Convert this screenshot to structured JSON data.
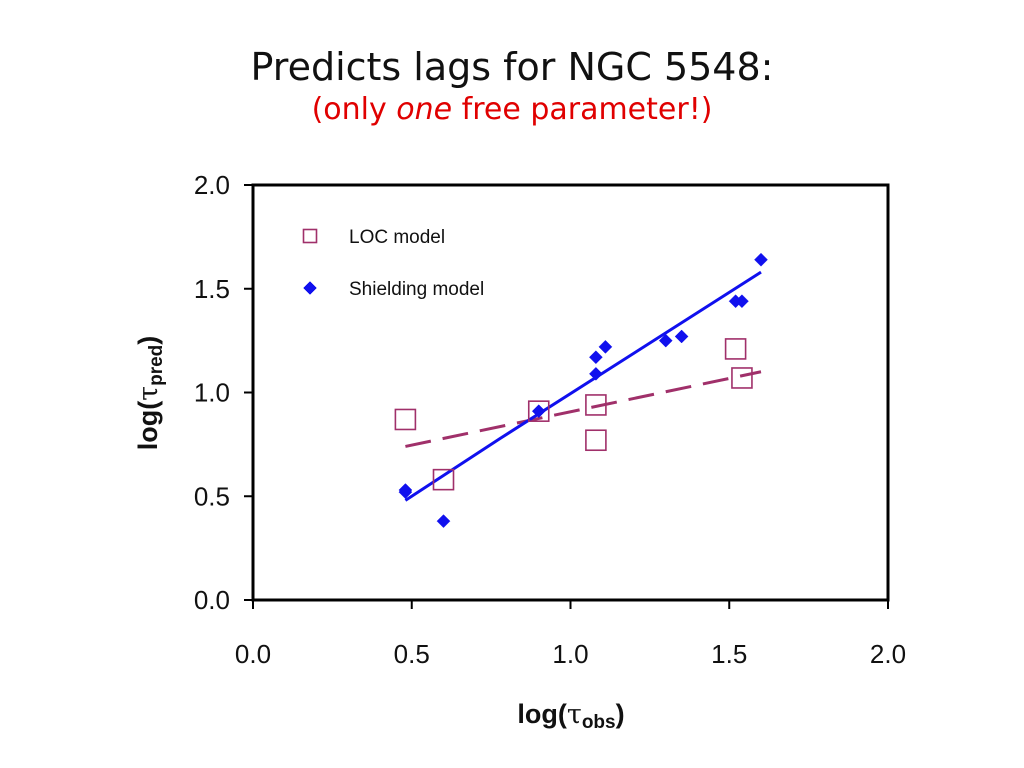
{
  "title": {
    "line1": "Predicts lags for NGC 5548:",
    "line2_pre": "(only ",
    "line2_em": "one",
    "line2_post": " free parameter!)"
  },
  "colors": {
    "loc": "#a0306a",
    "shielding": "#1010ee",
    "axis": "#000000"
  },
  "chart_data": {
    "type": "scatter",
    "xlim": [
      0.0,
      2.0
    ],
    "ylim": [
      0.0,
      2.0
    ],
    "xticks": [
      "0.0",
      "0.5",
      "1.0",
      "1.5",
      "2.0"
    ],
    "yticks": [
      "0.0",
      "0.5",
      "1.0",
      "1.5",
      "2.0"
    ],
    "xlabel": {
      "main": "log(",
      "greek": "τ",
      "sub": "obs",
      "end": ")"
    },
    "ylabel": {
      "main": "log(",
      "greek": "τ",
      "sub": "pred",
      "end": ")"
    },
    "grid": false,
    "legend_position": "top-left",
    "series": [
      {
        "name": "LOC model",
        "marker": "open-square",
        "points": [
          [
            0.48,
            0.87
          ],
          [
            0.6,
            0.58
          ],
          [
            0.9,
            0.91
          ],
          [
            1.08,
            0.94
          ],
          [
            1.08,
            0.77
          ],
          [
            1.52,
            1.21
          ],
          [
            1.54,
            1.07
          ]
        ],
        "fit": {
          "style": "dashed",
          "x": [
            0.48,
            1.6
          ],
          "y": [
            0.74,
            1.1
          ]
        }
      },
      {
        "name": "Shielding model",
        "marker": "filled-diamond",
        "points": [
          [
            0.48,
            0.53
          ],
          [
            0.48,
            0.52
          ],
          [
            0.6,
            0.38
          ],
          [
            0.9,
            0.91
          ],
          [
            1.08,
            1.17
          ],
          [
            1.11,
            1.22
          ],
          [
            1.08,
            1.09
          ],
          [
            1.3,
            1.25
          ],
          [
            1.35,
            1.27
          ],
          [
            1.52,
            1.44
          ],
          [
            1.54,
            1.44
          ],
          [
            1.6,
            1.64
          ]
        ],
        "fit": {
          "style": "solid",
          "x": [
            0.48,
            0.78,
            1.6
          ],
          "y": [
            0.48,
            0.78,
            1.58
          ]
        }
      }
    ]
  }
}
